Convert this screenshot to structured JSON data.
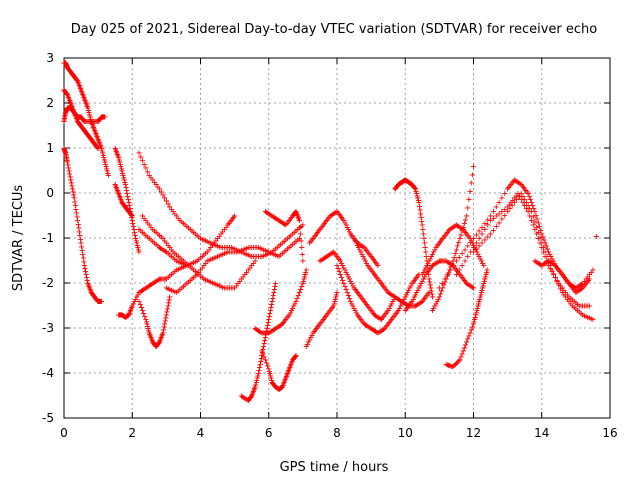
{
  "chart_data": {
    "type": "scatter",
    "title": "Day 025 of 2021, Sidereal Day-to-day VTEC variation (SDTVAR) for receiver echo",
    "xlabel": "GPS time / hours",
    "ylabel": "SDTVAR / TECUs",
    "xlim": [
      0,
      16
    ],
    "ylim": [
      -5,
      3
    ],
    "xticks": [
      0,
      2,
      4,
      6,
      8,
      10,
      12,
      14,
      16
    ],
    "yticks": [
      -5,
      -4,
      -3,
      -2,
      -1,
      0,
      1,
      2,
      3
    ],
    "grid": true,
    "marker": "+",
    "series_color": "#ff0000",
    "series": [
      {
        "x": [
          0.0,
          0.05,
          0.1,
          0.2,
          0.3,
          0.4,
          0.5,
          0.6,
          0.7,
          0.8,
          0.9,
          1.0,
          1.1
        ],
        "y": [
          1.0,
          0.9,
          0.7,
          0.3,
          -0.1,
          -0.6,
          -1.1,
          -1.6,
          -2.0,
          -2.2,
          -2.3,
          -2.4,
          -2.4
        ]
      },
      {
        "x": [
          0.0,
          0.05,
          0.1,
          0.2,
          0.3,
          0.4,
          0.5,
          0.6,
          0.8,
          1.0,
          1.1,
          1.2
        ],
        "y": [
          1.6,
          1.8,
          1.9,
          1.9,
          1.8,
          1.7,
          1.7,
          1.6,
          1.6,
          1.6,
          1.7,
          1.7
        ]
      },
      {
        "x": [
          0.0,
          0.05,
          0.1,
          0.2,
          0.3,
          0.4,
          0.5,
          0.6,
          0.7,
          0.8,
          0.9,
          1.0,
          1.1,
          1.2,
          1.3
        ],
        "y": [
          2.9,
          2.9,
          2.8,
          2.7,
          2.6,
          2.5,
          2.3,
          2.1,
          1.9,
          1.6,
          1.4,
          1.2,
          1.0,
          0.7,
          0.4
        ]
      },
      {
        "x": [
          0.0,
          0.1,
          0.2,
          0.3,
          0.4,
          0.5,
          0.6,
          0.7,
          0.8,
          0.9,
          1.0
        ],
        "y": [
          2.3,
          2.2,
          2.0,
          1.8,
          1.6,
          1.5,
          1.4,
          1.3,
          1.2,
          1.1,
          1.0
        ]
      },
      {
        "x": [
          1.5,
          1.6,
          1.7,
          1.8,
          1.9,
          2.0,
          2.1,
          2.2
        ],
        "y": [
          1.0,
          0.8,
          0.5,
          0.2,
          -0.2,
          -0.6,
          -1.0,
          -1.3
        ]
      },
      {
        "x": [
          1.5,
          1.6,
          1.7,
          1.8,
          1.9,
          2.0
        ],
        "y": [
          0.2,
          0.0,
          -0.2,
          -0.3,
          -0.4,
          -0.5
        ]
      },
      {
        "x": [
          1.6,
          1.7,
          1.8,
          1.9,
          2.0,
          2.2,
          2.4,
          2.6,
          2.8,
          3.0,
          3.3,
          3.6
        ],
        "y": [
          -2.7,
          -2.7,
          -2.75,
          -2.7,
          -2.5,
          -2.2,
          -2.1,
          -2.0,
          -1.9,
          -1.9,
          -1.7,
          -1.6
        ]
      },
      {
        "x": [
          2.2,
          2.4,
          2.5,
          2.6,
          2.7,
          2.8,
          2.9,
          3.0,
          3.1
        ],
        "y": [
          -2.4,
          -2.8,
          -3.1,
          -3.3,
          -3.4,
          -3.3,
          -3.1,
          -2.7,
          -2.3
        ]
      },
      {
        "x": [
          2.2,
          2.5,
          2.8,
          3.0,
          3.3,
          3.6,
          3.9,
          4.2,
          4.5,
          4.8,
          5.0
        ],
        "y": [
          -0.8,
          -1.0,
          -1.2,
          -1.3,
          -1.5,
          -1.6,
          -1.5,
          -1.3,
          -1.0,
          -0.7,
          -0.5
        ]
      },
      {
        "x": [
          2.2,
          2.5,
          2.8,
          3.1,
          3.4,
          3.7,
          4.0,
          4.3,
          4.6,
          4.9,
          5.2,
          5.5,
          5.8,
          6.1,
          6.4,
          6.7,
          7.0
        ],
        "y": [
          0.9,
          0.4,
          0.1,
          -0.3,
          -0.6,
          -0.8,
          -1.0,
          -1.1,
          -1.2,
          -1.2,
          -1.3,
          -1.4,
          -1.4,
          -1.3,
          -1.1,
          -0.9,
          -0.7
        ]
      },
      {
        "x": [
          2.3,
          2.6,
          2.9,
          3.2,
          3.5,
          3.8,
          4.1,
          4.4,
          4.7,
          5.0,
          5.3,
          5.6
        ],
        "y": [
          -0.5,
          -0.8,
          -1.0,
          -1.3,
          -1.5,
          -1.7,
          -1.9,
          -2.0,
          -2.1,
          -2.1,
          -1.8,
          -1.5
        ]
      },
      {
        "x": [
          3.0,
          3.3,
          3.6,
          3.9,
          4.2,
          4.5,
          4.8,
          5.1,
          5.4,
          5.7,
          6.0,
          6.3,
          6.6,
          6.9
        ],
        "y": [
          -2.1,
          -2.2,
          -2.0,
          -1.8,
          -1.5,
          -1.4,
          -1.3,
          -1.3,
          -1.2,
          -1.2,
          -1.3,
          -1.4,
          -1.2,
          -1.0
        ]
      },
      {
        "x": [
          5.2,
          5.4,
          5.5,
          5.6,
          5.7,
          5.8,
          5.9,
          6.0,
          6.1,
          6.2
        ],
        "y": [
          -4.5,
          -4.6,
          -4.5,
          -4.3,
          -4.0,
          -3.6,
          -3.2,
          -2.8,
          -2.4,
          -2.0
        ]
      },
      {
        "x": [
          5.8,
          6.0,
          6.1,
          6.2,
          6.3,
          6.4,
          6.5,
          6.6,
          6.7,
          6.8
        ],
        "y": [
          -3.5,
          -3.9,
          -4.2,
          -4.3,
          -4.35,
          -4.3,
          -4.1,
          -3.9,
          -3.7,
          -3.6
        ]
      },
      {
        "x": [
          5.6,
          5.8,
          6.0,
          6.2,
          6.4,
          6.6,
          6.8,
          7.0,
          7.1
        ],
        "y": [
          -3.0,
          -3.1,
          -3.1,
          -3.0,
          -2.9,
          -2.7,
          -2.4,
          -2.0,
          -1.7
        ]
      },
      {
        "x": [
          5.9,
          6.1,
          6.3,
          6.5,
          6.7,
          6.8,
          6.9,
          7.0
        ],
        "y": [
          -0.4,
          -0.5,
          -0.6,
          -0.7,
          -0.5,
          -0.4,
          -0.6,
          -1.5
        ]
      },
      {
        "x": [
          7.1,
          7.3,
          7.5,
          7.7,
          7.9,
          8.0
        ],
        "y": [
          -3.4,
          -3.1,
          -2.9,
          -2.7,
          -2.5,
          -2.2
        ]
      },
      {
        "x": [
          7.2,
          7.4,
          7.6,
          7.8,
          8.0,
          8.2,
          8.4,
          8.6,
          8.8,
          9.0,
          9.2
        ],
        "y": [
          -1.1,
          -0.9,
          -0.7,
          -0.5,
          -0.4,
          -0.6,
          -0.9,
          -1.1,
          -1.2,
          -1.4,
          -1.6
        ]
      },
      {
        "x": [
          7.5,
          7.7,
          7.9,
          8.1,
          8.3,
          8.5,
          8.7,
          8.9,
          9.1,
          9.3,
          9.5,
          9.7
        ],
        "y": [
          -1.5,
          -1.4,
          -1.3,
          -1.5,
          -1.8,
          -2.1,
          -2.3,
          -2.5,
          -2.7,
          -2.8,
          -2.6,
          -2.3
        ]
      },
      {
        "x": [
          8.0,
          8.2,
          8.4,
          8.6,
          8.8,
          9.0,
          9.2,
          9.4,
          9.6,
          9.8,
          10.0,
          10.2,
          10.4
        ],
        "y": [
          -1.6,
          -2.0,
          -2.4,
          -2.7,
          -2.9,
          -3.0,
          -3.1,
          -3.0,
          -2.8,
          -2.6,
          -2.3,
          -2.0,
          -1.8
        ]
      },
      {
        "x": [
          8.5,
          8.7,
          8.9,
          9.1,
          9.3,
          9.5,
          9.7,
          9.9,
          10.1,
          10.3,
          10.5,
          10.7
        ],
        "y": [
          -1.0,
          -1.3,
          -1.6,
          -1.8,
          -2.0,
          -2.2,
          -2.3,
          -2.4,
          -2.5,
          -2.5,
          -2.4,
          -2.2
        ]
      },
      {
        "x": [
          9.7,
          9.8,
          9.9,
          10.0,
          10.1,
          10.2,
          10.3,
          10.4,
          10.5,
          10.6,
          10.7,
          10.8
        ],
        "y": [
          0.1,
          0.2,
          0.25,
          0.3,
          0.25,
          0.2,
          0.1,
          -0.2,
          -0.7,
          -1.3,
          -1.9,
          -2.3
        ]
      },
      {
        "x": [
          10.0,
          10.2,
          10.4,
          10.6,
          10.8,
          11.0,
          11.2,
          11.4,
          11.6,
          11.8,
          12.0
        ],
        "y": [
          -2.6,
          -2.4,
          -2.1,
          -1.8,
          -1.6,
          -1.5,
          -1.5,
          -1.6,
          -1.8,
          -2.0,
          -2.1
        ]
      },
      {
        "x": [
          10.5,
          10.7,
          10.9,
          11.1,
          11.3,
          11.5,
          11.7,
          11.9,
          12.1,
          12.3
        ],
        "y": [
          -1.8,
          -1.5,
          -1.2,
          -1.0,
          -0.8,
          -0.7,
          -0.8,
          -1.0,
          -1.3,
          -1.6
        ]
      },
      {
        "x": [
          10.8,
          11.0,
          11.2,
          11.4,
          11.6,
          11.8,
          12.0
        ],
        "y": [
          -2.6,
          -2.3,
          -1.9,
          -1.5,
          -1.0,
          -0.5,
          0.6
        ]
      },
      {
        "x": [
          11.2,
          11.4,
          11.6,
          11.8,
          12.0,
          12.1,
          12.2,
          12.3,
          12.4
        ],
        "y": [
          -3.8,
          -3.85,
          -3.7,
          -3.3,
          -2.9,
          -2.6,
          -2.3,
          -2.0,
          -1.7
        ]
      },
      {
        "x": [
          11.0,
          11.5,
          12.0,
          12.5,
          13.0,
          13.2,
          13.4,
          13.6,
          13.8,
          14.0,
          14.2,
          14.4,
          14.6,
          14.8,
          15.0,
          15.2,
          15.5
        ],
        "y": [
          -2.1,
          -1.5,
          -1.0,
          -0.5,
          0.1,
          0.3,
          0.2,
          0.0,
          -0.4,
          -0.9,
          -1.3,
          -1.6,
          -1.8,
          -2.0,
          -2.1,
          -2.0,
          -1.7
        ]
      },
      {
        "x": [
          11.5,
          12.0,
          12.5,
          13.0,
          13.3,
          13.6,
          13.9,
          14.2,
          14.5,
          14.8,
          15.1,
          15.4
        ],
        "y": [
          -1.8,
          -1.2,
          -0.6,
          -0.3,
          0.0,
          -0.4,
          -1.0,
          -1.6,
          -2.0,
          -2.3,
          -2.5,
          -2.5
        ]
      },
      {
        "x": [
          12.0,
          12.5,
          13.0,
          13.4,
          13.7,
          14.0,
          14.3,
          14.6,
          14.9,
          15.2,
          15.5
        ],
        "y": [
          -1.3,
          -0.9,
          -0.4,
          0.0,
          -0.4,
          -1.1,
          -1.7,
          -2.2,
          -2.5,
          -2.7,
          -2.8
        ]
      },
      {
        "x": [
          13.8,
          14.0,
          14.2,
          14.4,
          14.6,
          14.8,
          15.0,
          15.2,
          15.4
        ],
        "y": [
          -1.5,
          -1.6,
          -1.5,
          -1.6,
          -1.8,
          -2.0,
          -2.2,
          -2.1,
          -1.9
        ]
      },
      {
        "x": [
          15.6
        ],
        "y": [
          -0.95
        ]
      }
    ]
  }
}
